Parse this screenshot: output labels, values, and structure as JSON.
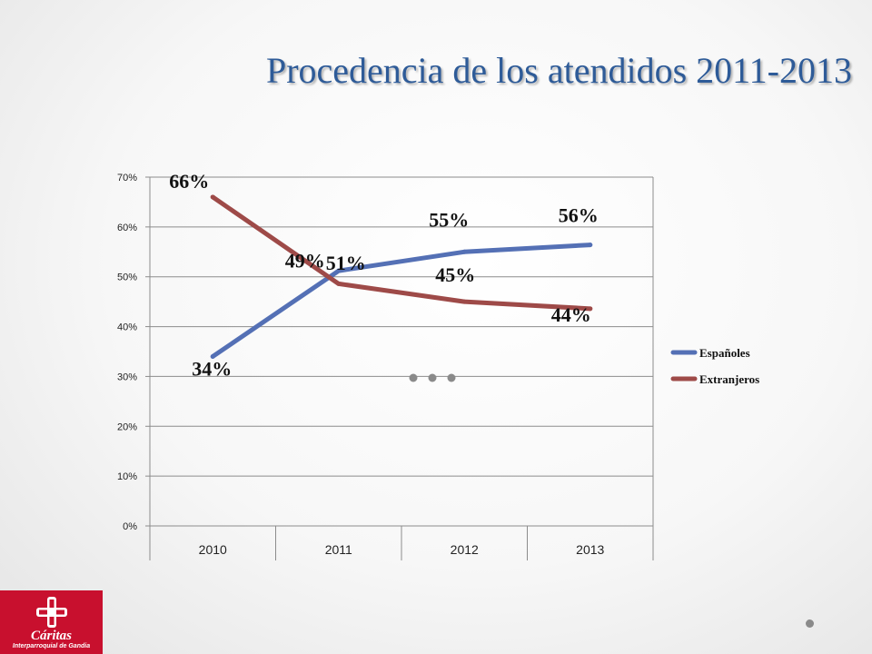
{
  "slide": {
    "title": "Procedencia de los atendidos 2011-2013"
  },
  "chart_data": {
    "type": "line",
    "categories": [
      "2010",
      "2011",
      "2012",
      "2013"
    ],
    "ylim": [
      0,
      70
    ],
    "yticks": [
      0,
      10,
      20,
      30,
      40,
      50,
      60,
      70
    ],
    "ytick_labels": [
      "0%",
      "10%",
      "20%",
      "30%",
      "40%",
      "50%",
      "60%",
      "70%"
    ],
    "grid": true,
    "legend_position": "right",
    "series": [
      {
        "name": "Españoles",
        "color": "#5470b5",
        "values": [
          34,
          51.2,
          55,
          56.4
        ],
        "labels": [
          "34%",
          "51%",
          "55%",
          "56%"
        ]
      },
      {
        "name": "Extranjeros",
        "color": "#9e4a48",
        "values": [
          66,
          48.6,
          45,
          43.6
        ],
        "labels": [
          "66%",
          "49%",
          "45%",
          "44%"
        ]
      }
    ],
    "annotations": [
      "• • •"
    ]
  },
  "logo": {
    "name": "Cáritas",
    "subtitle": "Interparroquial de Gandia",
    "color": "#c8102e"
  }
}
